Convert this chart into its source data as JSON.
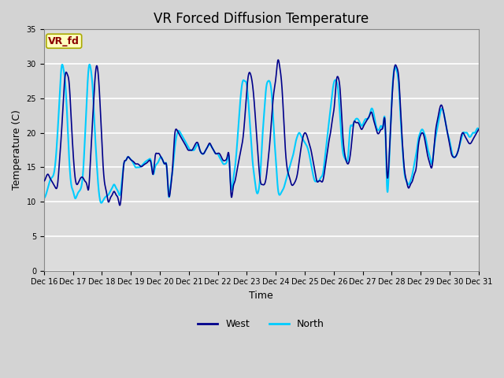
{
  "title": "VR Forced Diffusion Temperature",
  "xlabel": "Time",
  "ylabel": "Temperature (C)",
  "ylim": [
    0,
    35
  ],
  "yticks": [
    0,
    5,
    10,
    15,
    20,
    25,
    30,
    35
  ],
  "x_labels": [
    "Dec 16",
    "Dec 17",
    "Dec 18",
    "Dec 19",
    "Dec 20",
    "Dec 21",
    "Dec 22",
    "Dec 23",
    "Dec 24",
    "Dec 25",
    "Dec 26",
    "Dec 27",
    "Dec 28",
    "Dec 29",
    "Dec 30",
    "Dec 31"
  ],
  "color_west": "#00008B",
  "color_north": "#00CCFF",
  "label_west": "West",
  "label_north": "North",
  "annotation_text": "VR_fd",
  "annotation_color": "#8B0000",
  "annotation_bg": "#FFFFC0",
  "bg_color": "#DCDCDC",
  "grid_color": "#FFFFFF",
  "fig_bg": "#D3D3D3",
  "title_fontsize": 12,
  "axis_label_fontsize": 9,
  "tick_fontsize": 7,
  "west_points": [
    13.0,
    13.5,
    14.0,
    13.5,
    13.0,
    12.5,
    12.0,
    12.5,
    16.0,
    20.0,
    25.0,
    28.5,
    28.5,
    27.0,
    22.0,
    17.0,
    13.5,
    12.5,
    13.0,
    13.5,
    13.5,
    13.0,
    12.5,
    12.0,
    17.0,
    22.0,
    27.0,
    29.7,
    28.0,
    23.0,
    17.0,
    13.0,
    11.5,
    10.0,
    10.5,
    11.0,
    11.5,
    11.0,
    10.5,
    9.5,
    12.0,
    15.5,
    16.0,
    16.5,
    16.3,
    16.0,
    15.8,
    15.5,
    15.5,
    15.3,
    15.1,
    15.3,
    15.5,
    15.7,
    16.0,
    15.5,
    14.0,
    16.5,
    17.0,
    17.0,
    16.5,
    16.0,
    15.5,
    15.0,
    11.0,
    12.0,
    15.0,
    19.5,
    20.5,
    20.0,
    19.5,
    19.0,
    18.5,
    18.0,
    17.5,
    17.5,
    17.5,
    18.0,
    18.5,
    18.5,
    17.5,
    17.0,
    17.0,
    17.5,
    18.0,
    18.5,
    18.0,
    17.5,
    17.0,
    17.0,
    17.0,
    16.5,
    16.0,
    16.0,
    16.5,
    16.5,
    11.0,
    12.0,
    13.0,
    14.5,
    16.0,
    17.5,
    19.0,
    22.0,
    26.0,
    28.5,
    28.5,
    27.0,
    24.0,
    20.0,
    16.0,
    13.0,
    12.5,
    12.5,
    13.5,
    16.0,
    19.0,
    23.0,
    26.0,
    28.0,
    30.5,
    29.5,
    27.0,
    22.0,
    17.0,
    14.5,
    13.5,
    12.5,
    12.5,
    13.0,
    14.0,
    16.0,
    18.0,
    19.5,
    20.0,
    19.5,
    18.5,
    17.5,
    16.0,
    14.5,
    13.0,
    13.0,
    13.0,
    13.0,
    14.5,
    16.5,
    18.5,
    20.0,
    22.0,
    24.0,
    27.5,
    28.0,
    26.0,
    21.0,
    17.5,
    16.0,
    15.5,
    16.5,
    19.0,
    21.5,
    21.5,
    21.5,
    21.0,
    20.5,
    21.0,
    21.5,
    22.0,
    22.5,
    23.0,
    22.0,
    21.0,
    20.0,
    20.0,
    20.5,
    21.0,
    21.5,
    14.0,
    16.0,
    22.0,
    27.0,
    29.7,
    29.5,
    28.0,
    23.0,
    18.0,
    14.5,
    13.0,
    12.0,
    12.5,
    13.0,
    14.0,
    15.0,
    18.0,
    19.5,
    20.0,
    19.5,
    18.0,
    16.5,
    15.5,
    15.0,
    17.5,
    20.5,
    22.0,
    23.5,
    24.0,
    23.0,
    21.5,
    20.0,
    18.5,
    17.0,
    16.5,
    16.5,
    17.0,
    18.0,
    19.5,
    20.0,
    19.5,
    19.0,
    18.5,
    18.5,
    19.0,
    19.5,
    20.0,
    20.5
  ],
  "north_points": [
    10.5,
    11.0,
    12.0,
    13.0,
    13.5,
    14.0,
    16.0,
    20.0,
    25.0,
    29.5,
    29.3,
    27.0,
    22.0,
    16.0,
    12.5,
    11.5,
    10.5,
    11.0,
    11.5,
    12.0,
    14.0,
    19.0,
    25.0,
    29.5,
    29.3,
    26.5,
    21.0,
    16.0,
    12.0,
    10.0,
    10.0,
    10.5,
    10.8,
    11.0,
    11.5,
    12.0,
    12.5,
    12.0,
    11.5,
    11.0,
    13.0,
    15.5,
    16.0,
    16.5,
    16.3,
    16.0,
    15.5,
    15.0,
    15.0,
    15.0,
    15.2,
    15.5,
    15.8,
    16.0,
    16.2,
    15.8,
    14.0,
    15.0,
    15.5,
    16.0,
    16.5,
    16.0,
    15.5,
    15.0,
    10.8,
    12.5,
    14.5,
    17.5,
    19.5,
    20.3,
    20.0,
    19.5,
    19.0,
    18.5,
    18.0,
    17.5,
    17.5,
    17.5,
    18.0,
    18.3,
    17.5,
    17.0,
    17.0,
    17.5,
    18.0,
    18.3,
    18.0,
    17.5,
    17.0,
    17.0,
    16.5,
    16.0,
    15.5,
    15.5,
    16.0,
    16.3,
    12.0,
    13.0,
    15.0,
    18.0,
    22.0,
    25.5,
    27.5,
    27.5,
    27.0,
    24.0,
    20.0,
    16.0,
    13.5,
    11.5,
    11.5,
    14.0,
    19.0,
    23.0,
    26.5,
    27.5,
    27.3,
    25.0,
    20.0,
    16.0,
    12.0,
    11.0,
    11.5,
    12.0,
    13.0,
    14.0,
    15.0,
    16.0,
    17.0,
    18.5,
    19.5,
    20.0,
    19.5,
    19.0,
    18.5,
    18.0,
    17.0,
    15.5,
    14.0,
    13.0,
    13.0,
    13.0,
    13.5,
    14.0,
    16.0,
    18.5,
    21.0,
    23.5,
    26.0,
    27.5,
    27.5,
    26.0,
    22.0,
    18.0,
    16.5,
    16.0,
    16.5,
    20.5,
    21.0,
    21.5,
    22.0,
    22.0,
    21.5,
    21.0,
    21.5,
    22.0,
    22.0,
    22.5,
    23.5,
    23.0,
    21.5,
    20.5,
    20.5,
    21.0,
    21.0,
    21.5,
    12.0,
    15.0,
    22.0,
    27.5,
    29.5,
    29.0,
    27.0,
    22.0,
    17.5,
    14.0,
    13.0,
    12.5,
    13.0,
    14.0,
    15.5,
    17.0,
    19.0,
    20.0,
    20.5,
    20.0,
    19.0,
    17.5,
    16.5,
    15.5,
    17.5,
    19.5,
    21.0,
    22.5,
    23.5,
    23.0,
    21.5,
    20.0,
    19.0,
    17.5,
    16.5,
    16.5,
    17.0,
    18.0,
    19.0,
    20.0,
    20.0,
    20.0,
    19.5,
    19.5,
    20.0,
    20.0,
    20.5,
    20.5
  ]
}
